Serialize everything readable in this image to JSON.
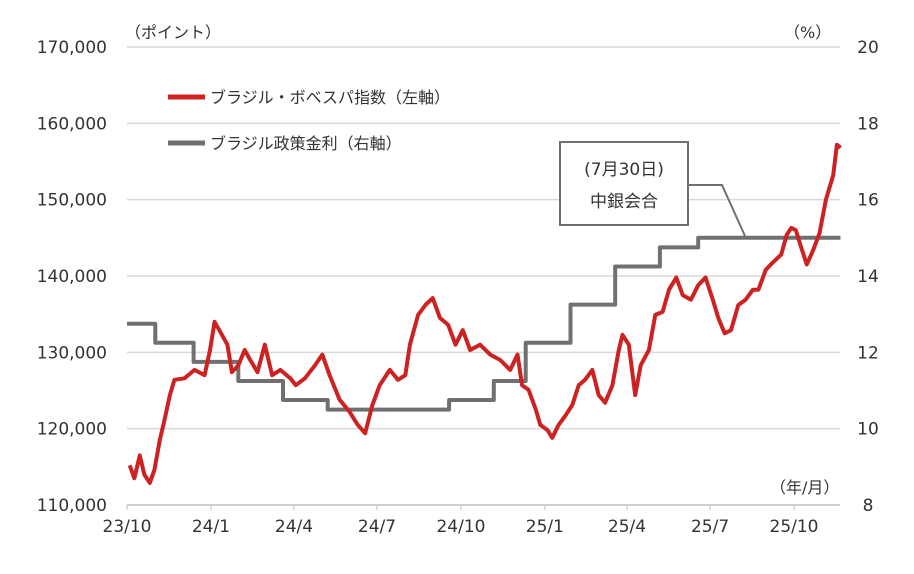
{
  "chart_data": {
    "type": "line",
    "title": "",
    "left_unit": "（ポイント）",
    "right_unit": "（%）",
    "x_unit": "（年/月）",
    "left_ylim": [
      110000,
      170000
    ],
    "right_ylim": [
      8,
      20
    ],
    "left_ticks": [
      "110,000",
      "120,000",
      "130,000",
      "140,000",
      "150,000",
      "160,000",
      "170,000"
    ],
    "right_ticks": [
      "8",
      "10",
      "12",
      "14",
      "16",
      "18",
      "20"
    ],
    "x_ticks": [
      {
        "label": "23/10",
        "date": "2023-10-01"
      },
      {
        "label": "24/1",
        "date": "2024-01-01"
      },
      {
        "label": "24/4",
        "date": "2024-04-01"
      },
      {
        "label": "24/7",
        "date": "2024-07-01"
      },
      {
        "label": "24/10",
        "date": "2024-10-01"
      },
      {
        "label": "25/1",
        "date": "2025-01-01"
      },
      {
        "label": "25/4",
        "date": "2025-04-01"
      },
      {
        "label": "25/7",
        "date": "2025-07-01"
      },
      {
        "label": "25/10",
        "date": "2025-10-01"
      }
    ],
    "grid": "horizontal",
    "legend_position": "top-left",
    "annotation": {
      "line1": "(7月30日)",
      "line2": "中銀会合",
      "date": "2025-07-30"
    },
    "series": [
      {
        "name": "ブラジル・ボベスパ指数（左軸）",
        "axis": "left",
        "color": "#cc2222",
        "points": [
          [
            "2023-10-04",
            115200
          ],
          [
            "2023-10-09",
            113500
          ],
          [
            "2023-10-15",
            116500
          ],
          [
            "2023-10-20",
            114000
          ],
          [
            "2023-10-26",
            112900
          ],
          [
            "2023-10-31",
            114600
          ],
          [
            "2023-11-06",
            118500
          ],
          [
            "2023-11-11",
            121100
          ],
          [
            "2023-11-17",
            124400
          ],
          [
            "2023-11-22",
            126400
          ],
          [
            "2023-12-03",
            126600
          ],
          [
            "2023-12-14",
            127700
          ],
          [
            "2023-12-25",
            127000
          ],
          [
            "2023-12-31",
            130300
          ],
          [
            "2024-01-05",
            134000
          ],
          [
            "2024-01-13",
            132300
          ],
          [
            "2024-01-19",
            131000
          ],
          [
            "2024-01-24",
            127400
          ],
          [
            "2024-01-31",
            128300
          ],
          [
            "2024-02-07",
            130300
          ],
          [
            "2024-02-13",
            129000
          ],
          [
            "2024-02-21",
            127400
          ],
          [
            "2024-02-29",
            131000
          ],
          [
            "2024-03-08",
            127000
          ],
          [
            "2024-03-17",
            127700
          ],
          [
            "2024-03-28",
            126600
          ],
          [
            "2024-04-03",
            125700
          ],
          [
            "2024-04-13",
            126600
          ],
          [
            "2024-04-24",
            128300
          ],
          [
            "2024-05-02",
            129700
          ],
          [
            "2024-05-10",
            127000
          ],
          [
            "2024-05-21",
            123800
          ],
          [
            "2024-06-01",
            122200
          ],
          [
            "2024-06-10",
            120500
          ],
          [
            "2024-06-18",
            119400
          ],
          [
            "2024-06-26",
            123100
          ],
          [
            "2024-07-04",
            125700
          ],
          [
            "2024-07-15",
            127700
          ],
          [
            "2024-07-24",
            126400
          ],
          [
            "2024-08-01",
            127000
          ],
          [
            "2024-08-06",
            131000
          ],
          [
            "2024-08-15",
            134900
          ],
          [
            "2024-08-23",
            136200
          ],
          [
            "2024-08-31",
            137100
          ],
          [
            "2024-09-08",
            134500
          ],
          [
            "2024-09-17",
            133600
          ],
          [
            "2024-09-25",
            131000
          ],
          [
            "2024-10-03",
            132900
          ],
          [
            "2024-10-11",
            130300
          ],
          [
            "2024-10-22",
            131000
          ],
          [
            "2024-11-02",
            129700
          ],
          [
            "2024-11-13",
            129000
          ],
          [
            "2024-11-24",
            127700
          ],
          [
            "2024-12-02",
            129700
          ],
          [
            "2024-12-07",
            125700
          ],
          [
            "2024-12-14",
            125100
          ],
          [
            "2024-12-22",
            122500
          ],
          [
            "2024-12-27",
            120500
          ],
          [
            "2025-01-04",
            119800
          ],
          [
            "2025-01-09",
            118800
          ],
          [
            "2025-01-16",
            120500
          ],
          [
            "2025-01-24",
            121800
          ],
          [
            "2025-01-31",
            123100
          ],
          [
            "2025-02-07",
            125700
          ],
          [
            "2025-02-14",
            126400
          ],
          [
            "2025-02-22",
            127700
          ],
          [
            "2025-03-01",
            124400
          ],
          [
            "2025-03-08",
            123400
          ],
          [
            "2025-03-16",
            125700
          ],
          [
            "2025-03-23",
            130300
          ],
          [
            "2025-03-27",
            132300
          ],
          [
            "2025-04-03",
            131000
          ],
          [
            "2025-04-10",
            124400
          ],
          [
            "2025-04-16",
            128300
          ],
          [
            "2025-04-25",
            130300
          ],
          [
            "2025-05-02",
            134900
          ],
          [
            "2025-05-10",
            135300
          ],
          [
            "2025-05-17",
            138200
          ],
          [
            "2025-05-25",
            139800
          ],
          [
            "2025-06-01",
            137500
          ],
          [
            "2025-06-10",
            136900
          ],
          [
            "2025-06-18",
            138800
          ],
          [
            "2025-06-26",
            139800
          ],
          [
            "2025-07-04",
            136900
          ],
          [
            "2025-07-10",
            134500
          ],
          [
            "2025-07-17",
            132500
          ],
          [
            "2025-07-24",
            132900
          ],
          [
            "2025-08-01",
            136200
          ],
          [
            "2025-08-09",
            136900
          ],
          [
            "2025-08-17",
            138200
          ],
          [
            "2025-08-23",
            138200
          ],
          [
            "2025-08-31",
            140800
          ],
          [
            "2025-09-08",
            141800
          ],
          [
            "2025-09-17",
            142800
          ],
          [
            "2025-09-23",
            145400
          ],
          [
            "2025-09-28",
            146300
          ],
          [
            "2025-10-03",
            146000
          ],
          [
            "2025-10-09",
            143700
          ],
          [
            "2025-10-15",
            141500
          ],
          [
            "2025-10-22",
            143400
          ],
          [
            "2025-10-29",
            145600
          ],
          [
            "2025-11-05",
            150000
          ],
          [
            "2025-11-13",
            153200
          ],
          [
            "2025-11-17",
            157200
          ],
          [
            "2025-11-21",
            156800
          ]
        ]
      },
      {
        "name": "ブラジル政策金利（右軸）",
        "axis": "right",
        "color": "#707070",
        "step": true,
        "points": [
          [
            "2023-10-01",
            12.75
          ],
          [
            "2023-11-01",
            12.25
          ],
          [
            "2023-12-13",
            11.75
          ],
          [
            "2024-01-31",
            11.25
          ],
          [
            "2024-03-20",
            10.75
          ],
          [
            "2024-05-08",
            10.5
          ],
          [
            "2024-09-18",
            10.75
          ],
          [
            "2024-11-06",
            11.25
          ],
          [
            "2024-12-11",
            12.25
          ],
          [
            "2025-01-29",
            13.25
          ],
          [
            "2025-03-19",
            14.25
          ],
          [
            "2025-05-07",
            14.75
          ],
          [
            "2025-06-18",
            15.0
          ],
          [
            "2025-11-21",
            15.0
          ]
        ]
      }
    ]
  }
}
